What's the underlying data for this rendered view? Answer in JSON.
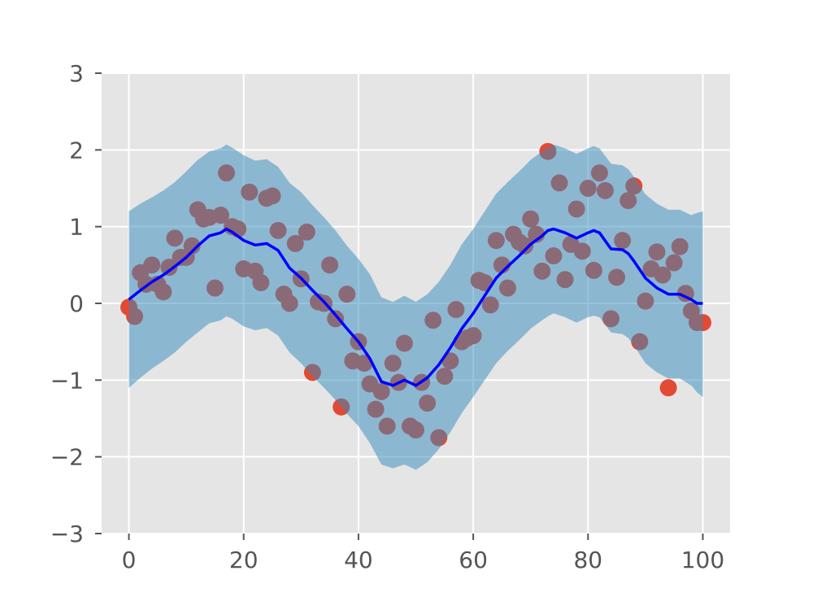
{
  "chart_data": {
    "type": "scatter",
    "title": "",
    "xlabel": "",
    "ylabel": "",
    "xlim": [
      -4.75,
      104.75
    ],
    "ylim": [
      -3,
      3
    ],
    "xticks": [
      0,
      20,
      40,
      60,
      80,
      100
    ],
    "yticks": [
      -3,
      -2,
      -1,
      0,
      1,
      2,
      3
    ],
    "xtick_labels": [
      "0",
      "20",
      "40",
      "60",
      "80",
      "100"
    ],
    "ytick_labels": [
      "−3",
      "−2",
      "−1",
      "0",
      "1",
      "2",
      "3"
    ],
    "grid": true,
    "style": "ggplot",
    "colors": {
      "background": "#e5e5e5",
      "grid": "#ffffff",
      "points": "#e24a33",
      "band": "#348abd",
      "mean_line": "#0000ff"
    },
    "band_opacity": 0.5,
    "series": [
      {
        "kind": "scatter",
        "x": [
          0,
          1,
          2,
          3,
          4,
          5,
          6,
          7,
          8,
          9,
          10,
          11,
          12,
          13,
          14,
          15,
          16,
          17,
          18,
          19,
          20,
          21,
          22,
          23,
          24,
          25,
          26,
          27,
          28,
          29,
          30,
          31,
          32,
          33,
          34,
          35,
          36,
          37,
          38,
          39,
          40,
          41,
          42,
          43,
          44,
          45,
          46,
          47,
          48,
          49,
          50,
          51,
          52,
          53,
          54,
          55,
          56,
          57,
          58,
          59,
          60,
          61,
          62,
          63,
          64,
          65,
          66,
          67,
          68,
          69,
          70,
          71,
          72,
          73,
          74,
          75,
          76,
          77,
          78,
          79,
          80,
          81,
          82,
          83,
          84,
          85,
          86,
          87,
          88,
          89,
          90,
          91,
          92,
          93,
          94,
          95,
          96,
          97,
          98,
          99,
          100
        ],
        "y": [
          -0.05,
          -0.17,
          0.4,
          0.25,
          0.5,
          0.25,
          0.15,
          0.47,
          0.85,
          0.6,
          0.6,
          0.75,
          1.22,
          1.1,
          1.12,
          0.2,
          1.15,
          1.7,
          1.0,
          0.97,
          0.45,
          1.45,
          0.42,
          0.27,
          1.37,
          1.4,
          0.95,
          0.12,
          0.0,
          0.78,
          0.32,
          0.93,
          -0.9,
          0.02,
          0.0,
          0.5,
          -0.2,
          -1.35,
          0.12,
          -0.75,
          -0.5,
          -0.78,
          -1.05,
          -1.38,
          -1.15,
          -1.6,
          -0.78,
          -1.03,
          -0.52,
          -1.6,
          -1.65,
          -1.03,
          -1.3,
          -0.22,
          -1.75,
          -0.95,
          -0.75,
          -0.08,
          -0.5,
          -0.45,
          -0.42,
          0.3,
          0.27,
          -0.02,
          0.82,
          0.5,
          0.2,
          0.9,
          0.8,
          0.75,
          1.1,
          0.9,
          0.42,
          1.98,
          0.62,
          1.57,
          0.31,
          0.77,
          1.23,
          0.68,
          1.5,
          0.43,
          1.7,
          1.47,
          -0.2,
          0.34,
          0.82,
          1.34,
          1.53,
          -0.5,
          0.03,
          0.45,
          0.67,
          0.37,
          -1.1,
          0.53,
          0.74,
          0.13,
          -0.1,
          -0.25,
          -0.25
        ]
      },
      {
        "kind": "line",
        "x": [
          0,
          2,
          4,
          6,
          8,
          10,
          12,
          14,
          16,
          17,
          18,
          20,
          22,
          24,
          26,
          28,
          30,
          32,
          34,
          36,
          38,
          40,
          42,
          44,
          46,
          48,
          50,
          52,
          54,
          56,
          58,
          60,
          62,
          64,
          66,
          68,
          70,
          72,
          73,
          74,
          76,
          78,
          80,
          81,
          82,
          84,
          86,
          87,
          88,
          90,
          92,
          94,
          96,
          98,
          99,
          100
        ],
        "y": [
          0.05,
          0.17,
          0.28,
          0.37,
          0.48,
          0.6,
          0.75,
          0.88,
          0.92,
          0.97,
          0.93,
          0.82,
          0.76,
          0.78,
          0.69,
          0.46,
          0.33,
          0.17,
          0.02,
          -0.15,
          -0.33,
          -0.5,
          -0.72,
          -1.02,
          -1.07,
          -1.0,
          -1.07,
          -0.97,
          -0.8,
          -0.58,
          -0.33,
          -0.13,
          0.1,
          0.33,
          0.48,
          0.62,
          0.77,
          0.88,
          0.95,
          0.97,
          0.92,
          0.85,
          0.92,
          0.95,
          0.92,
          0.71,
          0.7,
          0.65,
          0.55,
          0.33,
          0.2,
          0.12,
          0.12,
          0.05,
          0.0,
          0.0
        ]
      },
      {
        "kind": "band",
        "x": [
          0,
          2,
          4,
          6,
          8,
          10,
          12,
          14,
          16,
          17,
          18,
          20,
          22,
          24,
          26,
          28,
          30,
          32,
          34,
          36,
          38,
          40,
          42,
          44,
          46,
          48,
          50,
          52,
          54,
          56,
          58,
          60,
          62,
          64,
          66,
          68,
          70,
          72,
          73,
          74,
          76,
          78,
          80,
          81,
          82,
          84,
          86,
          87,
          88,
          90,
          92,
          94,
          96,
          98,
          99,
          100
        ],
        "upper": [
          1.2,
          1.3,
          1.38,
          1.47,
          1.58,
          1.72,
          1.87,
          1.98,
          2.02,
          2.07,
          2.03,
          1.93,
          1.86,
          1.88,
          1.78,
          1.57,
          1.45,
          1.28,
          1.12,
          0.95,
          0.75,
          0.58,
          0.38,
          0.08,
          0.02,
          0.1,
          0.02,
          0.12,
          0.28,
          0.5,
          0.77,
          0.97,
          1.2,
          1.43,
          1.58,
          1.72,
          1.87,
          1.98,
          2.03,
          2.07,
          2.02,
          1.95,
          2.02,
          2.05,
          2.02,
          1.82,
          1.8,
          1.75,
          1.65,
          1.42,
          1.3,
          1.22,
          1.22,
          1.15,
          1.18,
          1.2
        ],
        "lower": [
          -1.1,
          -0.97,
          -0.85,
          -0.75,
          -0.64,
          -0.5,
          -0.38,
          -0.26,
          -0.22,
          -0.17,
          -0.2,
          -0.3,
          -0.35,
          -0.32,
          -0.42,
          -0.64,
          -0.78,
          -0.95,
          -1.1,
          -1.26,
          -1.44,
          -1.6,
          -1.82,
          -2.1,
          -2.15,
          -2.1,
          -2.17,
          -2.07,
          -1.9,
          -1.68,
          -1.43,
          -1.22,
          -1.0,
          -0.78,
          -0.62,
          -0.48,
          -0.33,
          -0.22,
          -0.17,
          -0.13,
          -0.18,
          -0.25,
          -0.18,
          -0.16,
          -0.18,
          -0.38,
          -0.4,
          -0.45,
          -0.55,
          -0.78,
          -0.9,
          -0.98,
          -0.98,
          -1.07,
          -1.16,
          -1.22
        ]
      }
    ]
  }
}
